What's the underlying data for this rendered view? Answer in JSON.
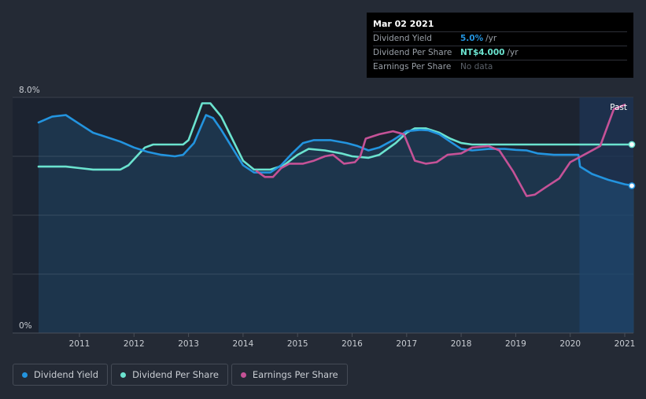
{
  "chart_data": {
    "type": "line",
    "title": "",
    "xlabel": "",
    "ylabel": "",
    "ylim": [
      0,
      8.0
    ],
    "xlim": [
      2010.25,
      2021.17
    ],
    "y_tick_labels": [
      {
        "value": 8.0,
        "label": "8.0%"
      },
      {
        "value": 0,
        "label": "0%"
      }
    ],
    "x_ticks": [
      2011,
      2012,
      2013,
      2014,
      2015,
      2016,
      2017,
      2018,
      2019,
      2020,
      2021
    ],
    "x_tick_labels": [
      "2011",
      "2012",
      "2013",
      "2014",
      "2015",
      "2016",
      "2017",
      "2018",
      "2019",
      "2020",
      "2021"
    ],
    "gridlines": [
      2,
      4,
      6,
      8
    ],
    "past_region": {
      "start": 2020.17,
      "end": 2021.17,
      "label": "Past"
    },
    "secondary_axis_note": "Dividend Per Share and Earnings Per Share are drawn on an unlabeled scale",
    "series": [
      {
        "name": "Dividend Yield",
        "color": "#2394df",
        "filled": true,
        "points": [
          [
            2010.25,
            7.15
          ],
          [
            2010.5,
            7.35
          ],
          [
            2010.75,
            7.4
          ],
          [
            2011.0,
            7.1
          ],
          [
            2011.25,
            6.8
          ],
          [
            2011.5,
            6.65
          ],
          [
            2011.75,
            6.5
          ],
          [
            2012.0,
            6.3
          ],
          [
            2012.25,
            6.15
          ],
          [
            2012.5,
            6.05
          ],
          [
            2012.75,
            6.0
          ],
          [
            2012.9,
            6.05
          ],
          [
            2013.1,
            6.45
          ],
          [
            2013.25,
            7.1
          ],
          [
            2013.32,
            7.4
          ],
          [
            2013.45,
            7.3
          ],
          [
            2013.6,
            6.9
          ],
          [
            2013.8,
            6.3
          ],
          [
            2014.0,
            5.7
          ],
          [
            2014.2,
            5.45
          ],
          [
            2014.5,
            5.45
          ],
          [
            2014.7,
            5.7
          ],
          [
            2014.9,
            6.1
          ],
          [
            2015.1,
            6.45
          ],
          [
            2015.3,
            6.55
          ],
          [
            2015.6,
            6.55
          ],
          [
            2015.9,
            6.45
          ],
          [
            2016.1,
            6.35
          ],
          [
            2016.3,
            6.2
          ],
          [
            2016.5,
            6.3
          ],
          [
            2016.75,
            6.55
          ],
          [
            2017.0,
            6.85
          ],
          [
            2017.25,
            6.9
          ],
          [
            2017.4,
            6.88
          ],
          [
            2017.6,
            6.75
          ],
          [
            2017.8,
            6.5
          ],
          [
            2018.0,
            6.25
          ],
          [
            2018.2,
            6.2
          ],
          [
            2018.5,
            6.25
          ],
          [
            2018.8,
            6.25
          ],
          [
            2019.0,
            6.22
          ],
          [
            2019.2,
            6.2
          ],
          [
            2019.4,
            6.1
          ],
          [
            2019.7,
            6.05
          ],
          [
            2020.0,
            6.05
          ],
          [
            2020.15,
            6.05
          ],
          [
            2020.18,
            5.65
          ],
          [
            2020.4,
            5.4
          ],
          [
            2020.7,
            5.2
          ],
          [
            2021.0,
            5.05
          ],
          [
            2021.17,
            5.0
          ]
        ]
      },
      {
        "name": "Dividend Per Share",
        "color": "#6be3cf",
        "filled": false,
        "points": [
          [
            2010.25,
            5.65
          ],
          [
            2010.75,
            5.65
          ],
          [
            2011.0,
            5.6
          ],
          [
            2011.25,
            5.55
          ],
          [
            2011.75,
            5.55
          ],
          [
            2011.9,
            5.7
          ],
          [
            2012.1,
            6.1
          ],
          [
            2012.2,
            6.3
          ],
          [
            2012.35,
            6.4
          ],
          [
            2012.9,
            6.4
          ],
          [
            2013.0,
            6.55
          ],
          [
            2013.15,
            7.3
          ],
          [
            2013.25,
            7.8
          ],
          [
            2013.4,
            7.8
          ],
          [
            2013.6,
            7.35
          ],
          [
            2013.8,
            6.6
          ],
          [
            2014.0,
            5.85
          ],
          [
            2014.2,
            5.55
          ],
          [
            2014.5,
            5.55
          ],
          [
            2014.75,
            5.7
          ],
          [
            2015.0,
            6.05
          ],
          [
            2015.2,
            6.25
          ],
          [
            2015.5,
            6.2
          ],
          [
            2015.8,
            6.1
          ],
          [
            2016.0,
            6.0
          ],
          [
            2016.3,
            5.95
          ],
          [
            2016.5,
            6.05
          ],
          [
            2016.8,
            6.45
          ],
          [
            2017.0,
            6.8
          ],
          [
            2017.15,
            6.95
          ],
          [
            2017.35,
            6.95
          ],
          [
            2017.6,
            6.8
          ],
          [
            2017.8,
            6.6
          ],
          [
            2018.0,
            6.45
          ],
          [
            2018.2,
            6.4
          ],
          [
            2019.0,
            6.4
          ],
          [
            2020.0,
            6.4
          ],
          [
            2021.17,
            6.4
          ]
        ]
      },
      {
        "name": "Earnings Per Share",
        "color": "#c55297",
        "filled": false,
        "points": [
          [
            2014.25,
            5.5
          ],
          [
            2014.4,
            5.3
          ],
          [
            2014.55,
            5.3
          ],
          [
            2014.7,
            5.6
          ],
          [
            2014.85,
            5.75
          ],
          [
            2015.1,
            5.75
          ],
          [
            2015.3,
            5.85
          ],
          [
            2015.5,
            6.0
          ],
          [
            2015.65,
            6.05
          ],
          [
            2015.85,
            5.75
          ],
          [
            2016.05,
            5.8
          ],
          [
            2016.15,
            6.0
          ],
          [
            2016.25,
            6.6
          ],
          [
            2016.5,
            6.75
          ],
          [
            2016.75,
            6.85
          ],
          [
            2016.95,
            6.75
          ],
          [
            2017.15,
            5.85
          ],
          [
            2017.35,
            5.75
          ],
          [
            2017.55,
            5.8
          ],
          [
            2017.75,
            6.05
          ],
          [
            2018.0,
            6.1
          ],
          [
            2018.2,
            6.3
          ],
          [
            2018.5,
            6.35
          ],
          [
            2018.7,
            6.2
          ],
          [
            2018.95,
            5.5
          ],
          [
            2019.2,
            4.65
          ],
          [
            2019.35,
            4.7
          ],
          [
            2019.55,
            4.95
          ],
          [
            2019.8,
            5.25
          ],
          [
            2020.0,
            5.8
          ],
          [
            2020.3,
            6.1
          ],
          [
            2020.55,
            6.35
          ],
          [
            2020.8,
            7.6
          ],
          [
            2021.0,
            7.75
          ]
        ]
      }
    ],
    "end_markers": [
      "Dividend Yield",
      "Dividend Per Share"
    ]
  },
  "tooltip": {
    "date": "Mar 02 2021",
    "rows": [
      {
        "label": "Dividend Yield",
        "value": "5.0%",
        "unit": "/yr",
        "color": "#2394df"
      },
      {
        "label": "Dividend Per Share",
        "value": "NT$4.000",
        "unit": "/yr",
        "color": "#6be3cf"
      },
      {
        "label": "Earnings Per Share",
        "value": "No data",
        "unit": "",
        "color": "#5b616a"
      }
    ]
  },
  "legend": [
    {
      "label": "Dividend Yield",
      "color": "#2394df"
    },
    {
      "label": "Dividend Per Share",
      "color": "#6be3cf"
    },
    {
      "label": "Earnings Per Share",
      "color": "#c55297"
    }
  ]
}
